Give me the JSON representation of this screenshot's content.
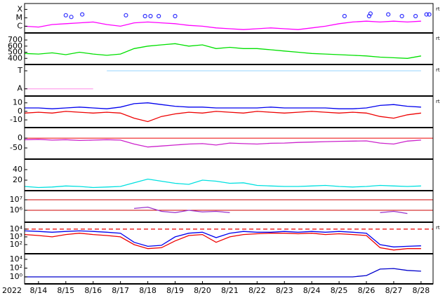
{
  "chart_data": [
    {
      "type": "line",
      "note": "rt",
      "log": false,
      "x": [
        13.5,
        14,
        14.5,
        15,
        15.5,
        16,
        16.5,
        17,
        17.5,
        18,
        18.5,
        19,
        19.5,
        20,
        20.5,
        21,
        21.5,
        22,
        22.5,
        23,
        23.5,
        24,
        24.5,
        25,
        25.5,
        26,
        26.5,
        27,
        27.5,
        28
      ],
      "xlim": [
        13.49,
        28.44
      ],
      "ylim": [
        -6.8,
        -3.3
      ],
      "yticks": [
        {
          "value": -4,
          "label": "X"
        },
        {
          "value": -5,
          "label": "M"
        },
        {
          "value": -6,
          "label": "C"
        }
      ],
      "series": [
        {
          "color": "#ff00ff",
          "values": [
            -6.0,
            -6.1,
            -5.8,
            -5.7,
            -5.6,
            -5.5,
            -5.8,
            -6.0,
            -5.6,
            -5.5,
            -5.6,
            -5.7,
            -5.9,
            -6.0,
            -6.2,
            -6.3,
            -6.4,
            -6.3,
            -6.2,
            -6.3,
            -6.4,
            -6.2,
            -6.0,
            -5.7,
            -5.5,
            -5.4,
            -5.5,
            -5.4,
            -5.5,
            -5.4
          ]
        }
      ],
      "flares": {
        "color": "#3333ff",
        "x": [
          15.0,
          15.2,
          15.6,
          17.2,
          17.9,
          18.1,
          18.4,
          19.0,
          25.2,
          26.1,
          26.15,
          26.8,
          27.3,
          27.8,
          28.2,
          28.3
        ],
        "values": [
          -4.7,
          -4.9,
          -4.6,
          -4.7,
          -4.8,
          -4.8,
          -4.8,
          -4.8,
          -4.8,
          -4.8,
          -4.5,
          -4.6,
          -4.8,
          -4.8,
          -4.6,
          -4.6
        ]
      }
    },
    {
      "type": "line",
      "note": "rt",
      "log": false,
      "x": [
        13.5,
        14,
        14.5,
        15,
        15.5,
        16,
        16.5,
        17,
        17.5,
        18,
        18.5,
        19,
        19.5,
        20,
        20.5,
        21,
        21.5,
        22,
        22.5,
        23,
        23.5,
        24,
        24.5,
        25,
        25.5,
        26,
        26.5,
        27,
        27.5,
        28
      ],
      "xlim": [
        13.49,
        28.44
      ],
      "ylim": [
        300,
        815
      ],
      "yticks": [
        700,
        600,
        500,
        400
      ],
      "series": [
        {
          "color": "#00e000",
          "values": [
            480,
            470,
            490,
            460,
            500,
            470,
            450,
            470,
            560,
            600,
            620,
            640,
            600,
            620,
            560,
            580,
            560,
            560,
            540,
            520,
            500,
            480,
            470,
            460,
            450,
            440,
            420,
            410,
            400,
            440
          ]
        }
      ]
    },
    {
      "type": "line",
      "note": "rt",
      "log": false,
      "x": [
        13.5,
        14,
        14.5,
        15,
        15.5,
        16,
        16.5,
        17,
        17.5,
        18,
        18.5,
        19,
        19.5,
        20,
        20.5,
        21,
        21.5,
        22,
        22.5,
        23,
        23.5,
        24,
        24.5,
        25,
        25.5,
        26,
        26.5,
        27,
        27.5,
        28
      ],
      "xlim": [
        13.49,
        28.44
      ],
      "ylim": [
        -0.4,
        1.35
      ],
      "yticks": [
        {
          "value": 1,
          "label": "T"
        },
        {
          "value": 0,
          "label": "A"
        }
      ],
      "series": [
        {
          "color": "#ffaaee",
          "values": [
            0,
            0,
            0,
            0,
            0,
            0,
            null,
            null,
            null,
            null,
            null,
            null,
            null,
            null,
            null,
            null,
            null,
            null,
            null,
            null,
            null,
            null,
            null,
            null,
            null,
            null,
            null,
            null,
            null,
            null
          ]
        },
        {
          "color": "#aaddff",
          "values": [
            null,
            null,
            null,
            null,
            null,
            null,
            1,
            1,
            1,
            1,
            1,
            1,
            1,
            1,
            1,
            1,
            1,
            1,
            1,
            1,
            1,
            1,
            1,
            1,
            1,
            1,
            1,
            1,
            1,
            1
          ]
        }
      ]
    },
    {
      "type": "line",
      "note": "rt",
      "log": false,
      "x": [
        13.5,
        14,
        14.5,
        15,
        15.5,
        16,
        16.5,
        17,
        17.5,
        18,
        18.5,
        19,
        19.5,
        20,
        20.5,
        21,
        21.5,
        22,
        22.5,
        23,
        23.5,
        24,
        24.5,
        25,
        25.5,
        26,
        26.5,
        27,
        27.5,
        28
      ],
      "xlim": [
        13.49,
        28.44
      ],
      "ylim": [
        -19,
        18
      ],
      "yticks": [
        10,
        0,
        -10
      ],
      "series": [
        {
          "color": "#0000ee",
          "values": [
            4,
            4,
            3,
            4,
            5,
            4,
            3,
            5,
            9,
            10,
            8,
            6,
            5,
            5,
            4,
            4,
            4,
            4,
            5,
            4,
            4,
            4,
            4,
            3,
            3,
            4,
            7,
            8,
            6,
            5
          ]
        },
        {
          "color": "#ee0000",
          "values": [
            -2,
            -1,
            -2,
            0,
            -1,
            -2,
            -1,
            -2,
            -8,
            -12,
            -6,
            -3,
            -1,
            -2,
            0,
            -1,
            -2,
            0,
            -1,
            -2,
            -1,
            0,
            -1,
            -2,
            -1,
            -2,
            -6,
            -8,
            -4,
            -2
          ]
        }
      ]
    },
    {
      "type": "line",
      "log": false,
      "x": [
        13.5,
        14,
        14.5,
        15,
        15.5,
        16,
        16.5,
        17,
        17.5,
        18,
        18.5,
        19,
        19.5,
        20,
        20.5,
        21,
        21.5,
        22,
        22.5,
        23,
        23.5,
        24,
        24.5,
        25,
        25.5,
        26,
        26.5,
        27,
        27.5,
        28
      ],
      "xlim": [
        13.49,
        28.44
      ],
      "ylim": [
        -107,
        54
      ],
      "yticks": [
        0,
        -50
      ],
      "zero_line": "#ee0000",
      "series": [
        {
          "color": "#cc22cc",
          "values": [
            -8,
            -6,
            -10,
            -8,
            -12,
            -10,
            -8,
            -10,
            -30,
            -45,
            -40,
            -35,
            -30,
            -28,
            -35,
            -25,
            -28,
            -30,
            -26,
            -25,
            -22,
            -20,
            -18,
            -16,
            -15,
            -14,
            -25,
            -30,
            -15,
            -10
          ]
        }
      ]
    },
    {
      "type": "line",
      "log": false,
      "x": [
        13.5,
        14,
        14.5,
        15,
        15.5,
        16,
        16.5,
        17,
        17.5,
        18,
        18.5,
        19,
        19.5,
        20,
        20.5,
        21,
        21.5,
        22,
        22.5,
        23,
        23.5,
        24,
        24.5,
        25,
        25.5,
        26,
        26.5,
        27,
        27.5,
        28
      ],
      "xlim": [
        13.49,
        28.44
      ],
      "ylim": [
        0,
        60
      ],
      "yticks": [
        40,
        20
      ],
      "series": [
        {
          "color": "#00e0e0",
          "values": [
            8,
            6,
            7,
            9,
            8,
            6,
            7,
            8,
            15,
            22,
            18,
            14,
            12,
            20,
            18,
            14,
            15,
            10,
            9,
            8,
            8,
            9,
            10,
            8,
            7,
            8,
            10,
            9,
            8,
            9
          ]
        }
      ]
    },
    {
      "type": "line",
      "log": true,
      "grid": true,
      "grid_color": "#cc0000",
      "x": [
        13.5,
        14,
        14.5,
        15,
        15.5,
        16,
        16.5,
        17,
        17.5,
        18,
        18.5,
        19,
        19.5,
        20,
        20.5,
        21,
        21.5,
        22,
        22.5,
        23,
        23.5,
        24,
        24.5,
        25,
        25.5,
        26,
        26.5,
        27,
        27.5,
        28
      ],
      "xlim": [
        13.49,
        28.44
      ],
      "ylim": [
        74000,
        74000000
      ],
      "yticks": [
        {
          "value": 10000000,
          "label": "10⁷"
        },
        {
          "value": 1000000,
          "label": "10⁶"
        }
      ],
      "series": [
        {
          "color": "#9933cc",
          "values": [
            null,
            null,
            null,
            null,
            null,
            null,
            null,
            null,
            1500000,
            2000000,
            800000,
            600000,
            1000000,
            700000,
            800000,
            600000,
            null,
            null,
            null,
            null,
            null,
            null,
            null,
            null,
            null,
            null,
            600000,
            800000,
            500000,
            null
          ]
        }
      ]
    },
    {
      "type": "line",
      "note": "rt",
      "log": true,
      "threshold": 10000,
      "threshold_color": "#ee0000",
      "x": [
        13.5,
        14,
        14.5,
        15,
        15.5,
        16,
        16.5,
        17,
        17.5,
        18,
        18.5,
        19,
        19.5,
        20,
        20.5,
        21,
        21.5,
        22,
        22.5,
        23,
        23.5,
        24,
        24.5,
        25,
        25.5,
        26,
        26.5,
        27,
        27.5,
        28
      ],
      "xlim": [
        13.49,
        28.44
      ],
      "ylim": [
        6.6,
        79000
      ],
      "yticks": [
        {
          "value": 10000,
          "label": "10⁴"
        },
        {
          "value": 1000,
          "label": "10³"
        },
        {
          "value": 100,
          "label": "10²"
        }
      ],
      "series": [
        {
          "color": "#0000ee",
          "values": [
            6000,
            5000,
            4000,
            5000,
            6000,
            5000,
            4000,
            3000,
            200,
            60,
            80,
            1000,
            3000,
            4000,
            800,
            3000,
            5000,
            4000,
            4000,
            5000,
            4000,
            5000,
            4000,
            5000,
            4000,
            3000,
            100,
            50,
            60,
            70
          ]
        },
        {
          "color": "#ee0000",
          "values": [
            2000,
            1500,
            1000,
            2000,
            3000,
            2000,
            1500,
            1000,
            100,
            30,
            40,
            300,
            1500,
            2000,
            200,
            1000,
            2000,
            2500,
            3000,
            3000,
            2500,
            3000,
            2000,
            2500,
            2000,
            1500,
            40,
            20,
            30,
            30
          ]
        }
      ]
    },
    {
      "type": "line",
      "log": true,
      "year": "2022",
      "x": [
        13.5,
        14,
        14.5,
        15,
        15.5,
        16,
        16.5,
        17,
        17.5,
        18,
        18.5,
        19,
        19.5,
        20,
        20.5,
        21,
        21.5,
        22,
        22.5,
        23,
        23.5,
        24,
        24.5,
        25,
        25.5,
        26,
        26.5,
        27,
        27.5,
        28
      ],
      "xlim": [
        13.49,
        28.44
      ],
      "ylim": [
        0.025,
        190000
      ],
      "yticks": [
        {
          "value": 10000,
          "label": "10⁴"
        },
        {
          "value": 100,
          "label": "10²"
        },
        {
          "value": 1,
          "label": "10⁰"
        }
      ],
      "xticks": [
        {
          "value": 14,
          "label": "8/14"
        },
        {
          "value": 15,
          "label": "8/15"
        },
        {
          "value": 16,
          "label": "8/16"
        },
        {
          "value": 17,
          "label": "8/17"
        },
        {
          "value": 18,
          "label": "8/18"
        },
        {
          "value": 19,
          "label": "8/19"
        },
        {
          "value": 20,
          "label": "8/20"
        },
        {
          "value": 21,
          "label": "8/21"
        },
        {
          "value": 22,
          "label": "8/22"
        },
        {
          "value": 23,
          "label": "8/23"
        },
        {
          "value": 24,
          "label": "8/24"
        },
        {
          "value": 25,
          "label": "8/25"
        },
        {
          "value": 26,
          "label": "8/26"
        },
        {
          "value": 27,
          "label": "8/27"
        },
        {
          "value": 28,
          "label": "8/28"
        }
      ],
      "series": [
        {
          "color": "#0000cc",
          "values": [
            1,
            1,
            1,
            1,
            1,
            1,
            1,
            1,
            1,
            1,
            1,
            1,
            1,
            1,
            1,
            1,
            1,
            1,
            1,
            1,
            1,
            1,
            1,
            1,
            1,
            2,
            60,
            80,
            30,
            20
          ]
        }
      ]
    }
  ]
}
